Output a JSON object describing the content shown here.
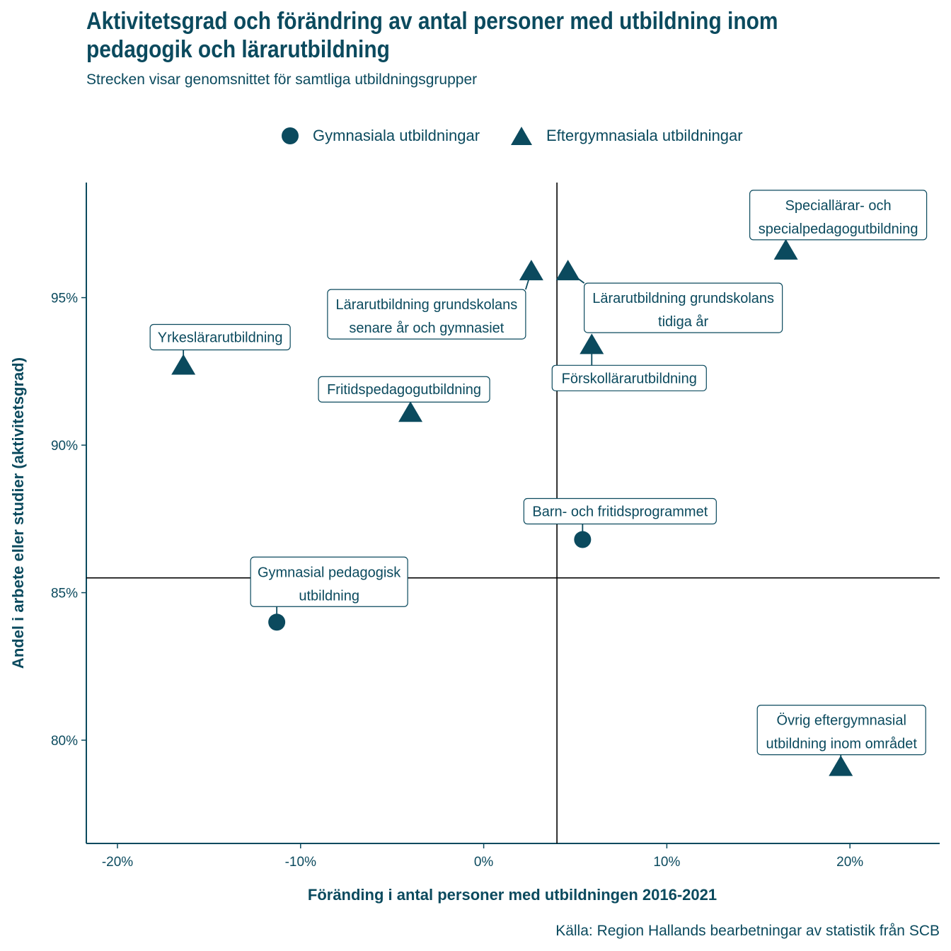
{
  "title": "Aktivitetsgrad och förändring av antal personer med utbildning inom pedagogik och lärarutbildning",
  "subtitle": "Strecken visar genomsnittet för samtliga utbildningsgrupper",
  "caption": "Källa: Region Hallands bearbetningar av statistik från SCB",
  "colors": {
    "primary": "#0b4a5e"
  },
  "legend": [
    {
      "label": "Gymnasiala utbildningar",
      "shape": "circle-icon"
    },
    {
      "label": "Eftergymnasiala utbildningar",
      "shape": "triangle-icon"
    }
  ],
  "chart_data": {
    "type": "scatter",
    "title": "Aktivitetsgrad och förändring av antal personer med utbildning inom pedagogik och lärarutbildning",
    "subtitle": "Strecken visar genomsnittet för samtliga utbildningsgrupper",
    "xlabel": "Föränding i antal personer med utbildningen 2016-2021",
    "ylabel": "Andel i arbete eller studier (aktivitetsgrad)",
    "xlim": [
      -21.7,
      24.9
    ],
    "ylim": [
      76.5,
      98.9
    ],
    "x_ticks": [
      {
        "value": -20,
        "label": "-20%"
      },
      {
        "value": -10,
        "label": "-10%"
      },
      {
        "value": 0,
        "label": "0%"
      },
      {
        "value": 10,
        "label": "10%"
      },
      {
        "value": 20,
        "label": "20%"
      }
    ],
    "y_ticks": [
      {
        "value": 80,
        "label": "80%"
      },
      {
        "value": 85,
        "label": "85%"
      },
      {
        "value": 90,
        "label": "90%"
      },
      {
        "value": 95,
        "label": "95%"
      }
    ],
    "grid": false,
    "legend_position": "top",
    "reference_lines": {
      "x": 4.0,
      "y": 85.5
    },
    "series": [
      {
        "name": "Gymnasiala utbildningar",
        "marker": "circle",
        "points": [
          {
            "label": "Barn- och fritidsprogrammet",
            "x": 5.4,
            "y": 86.8
          },
          {
            "label": "Gymnasial pedagogisk utbildning",
            "x": -11.3,
            "y": 84.0
          }
        ]
      },
      {
        "name": "Eftergymnasiala utbildningar",
        "marker": "triangle",
        "points": [
          {
            "label": "Speciallärar- och specialpedagogutbildning",
            "x": 16.5,
            "y": 96.6
          },
          {
            "label": "Lärarutbildning grundskolans senare år och gymnasiet",
            "x": 2.6,
            "y": 95.9
          },
          {
            "label": "Lärarutbildning grundskolans tidiga år",
            "x": 4.6,
            "y": 95.9
          },
          {
            "label": "Yrkeslärarutbildning",
            "x": -16.4,
            "y": 92.7
          },
          {
            "label": "Förskollärarutbildning",
            "x": 5.9,
            "y": 93.4
          },
          {
            "label": "Fritidspedagogutbildning",
            "x": -4.0,
            "y": 91.1
          },
          {
            "label": "Övrig eftergymnasial utbildning inom området",
            "x": 19.5,
            "y": 79.1
          }
        ]
      }
    ]
  }
}
